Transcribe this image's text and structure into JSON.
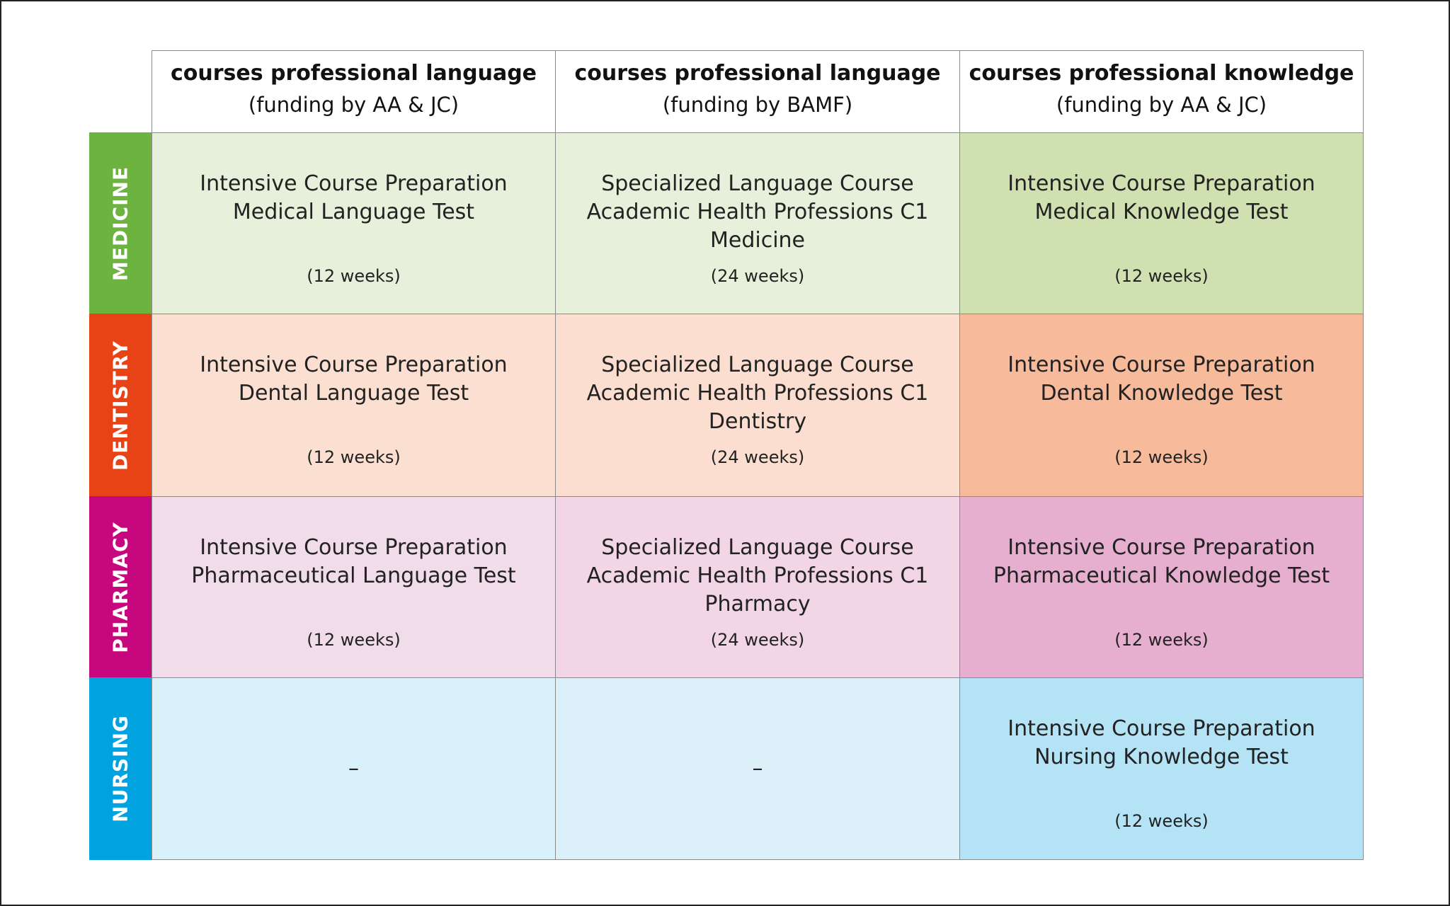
{
  "table": {
    "columns": [
      {
        "title": "courses professional language",
        "subtitle": "(funding by AA & JC)"
      },
      {
        "title": "courses professional language",
        "subtitle": "(funding by BAMF)"
      },
      {
        "title": "courses professional knowledge",
        "subtitle": "(funding by AA & JC)"
      }
    ],
    "rows": [
      {
        "label": "MEDICINE",
        "cells": [
          {
            "lines": [
              "Intensive Course Preparation",
              "Medical Language Test"
            ],
            "duration": "(12 weeks)"
          },
          {
            "lines": [
              "Specialized Language Course",
              "Academic Health Professions C1",
              "Medicine"
            ],
            "duration": "(24 weeks)"
          },
          {
            "lines": [
              "Intensive Course Preparation",
              "Medical Knowledge Test"
            ],
            "duration": "(12 weeks)"
          }
        ]
      },
      {
        "label": "DENTISTRY",
        "cells": [
          {
            "lines": [
              "Intensive Course Preparation",
              "Dental Language Test"
            ],
            "duration": "(12 weeks)"
          },
          {
            "lines": [
              "Specialized Language Course",
              "Academic Health Professions C1",
              "Dentistry"
            ],
            "duration": "(24 weeks)"
          },
          {
            "lines": [
              "Intensive Course Preparation",
              "Dental Knowledge Test"
            ],
            "duration": "(12 weeks)"
          }
        ]
      },
      {
        "label": "PHARMACY",
        "cells": [
          {
            "lines": [
              "Intensive Course Preparation",
              "Pharmaceutical Language Test"
            ],
            "duration": "(12 weeks)"
          },
          {
            "lines": [
              "Specialized Language Course",
              "Academic Health Professions C1",
              "Pharmacy"
            ],
            "duration": "(24 weeks)"
          },
          {
            "lines": [
              "Intensive Course Preparation",
              "Pharmaceutical Knowledge Test"
            ],
            "duration": "(12 weeks)"
          }
        ]
      },
      {
        "label": "NURSING",
        "cells": [
          {
            "lines": [
              "–"
            ]
          },
          {
            "lines": [
              "–"
            ]
          },
          {
            "lines": [
              "Intensive Course Preparation",
              "Nursing Knowledge Test"
            ],
            "duration": "(12 weeks)"
          }
        ]
      }
    ]
  }
}
